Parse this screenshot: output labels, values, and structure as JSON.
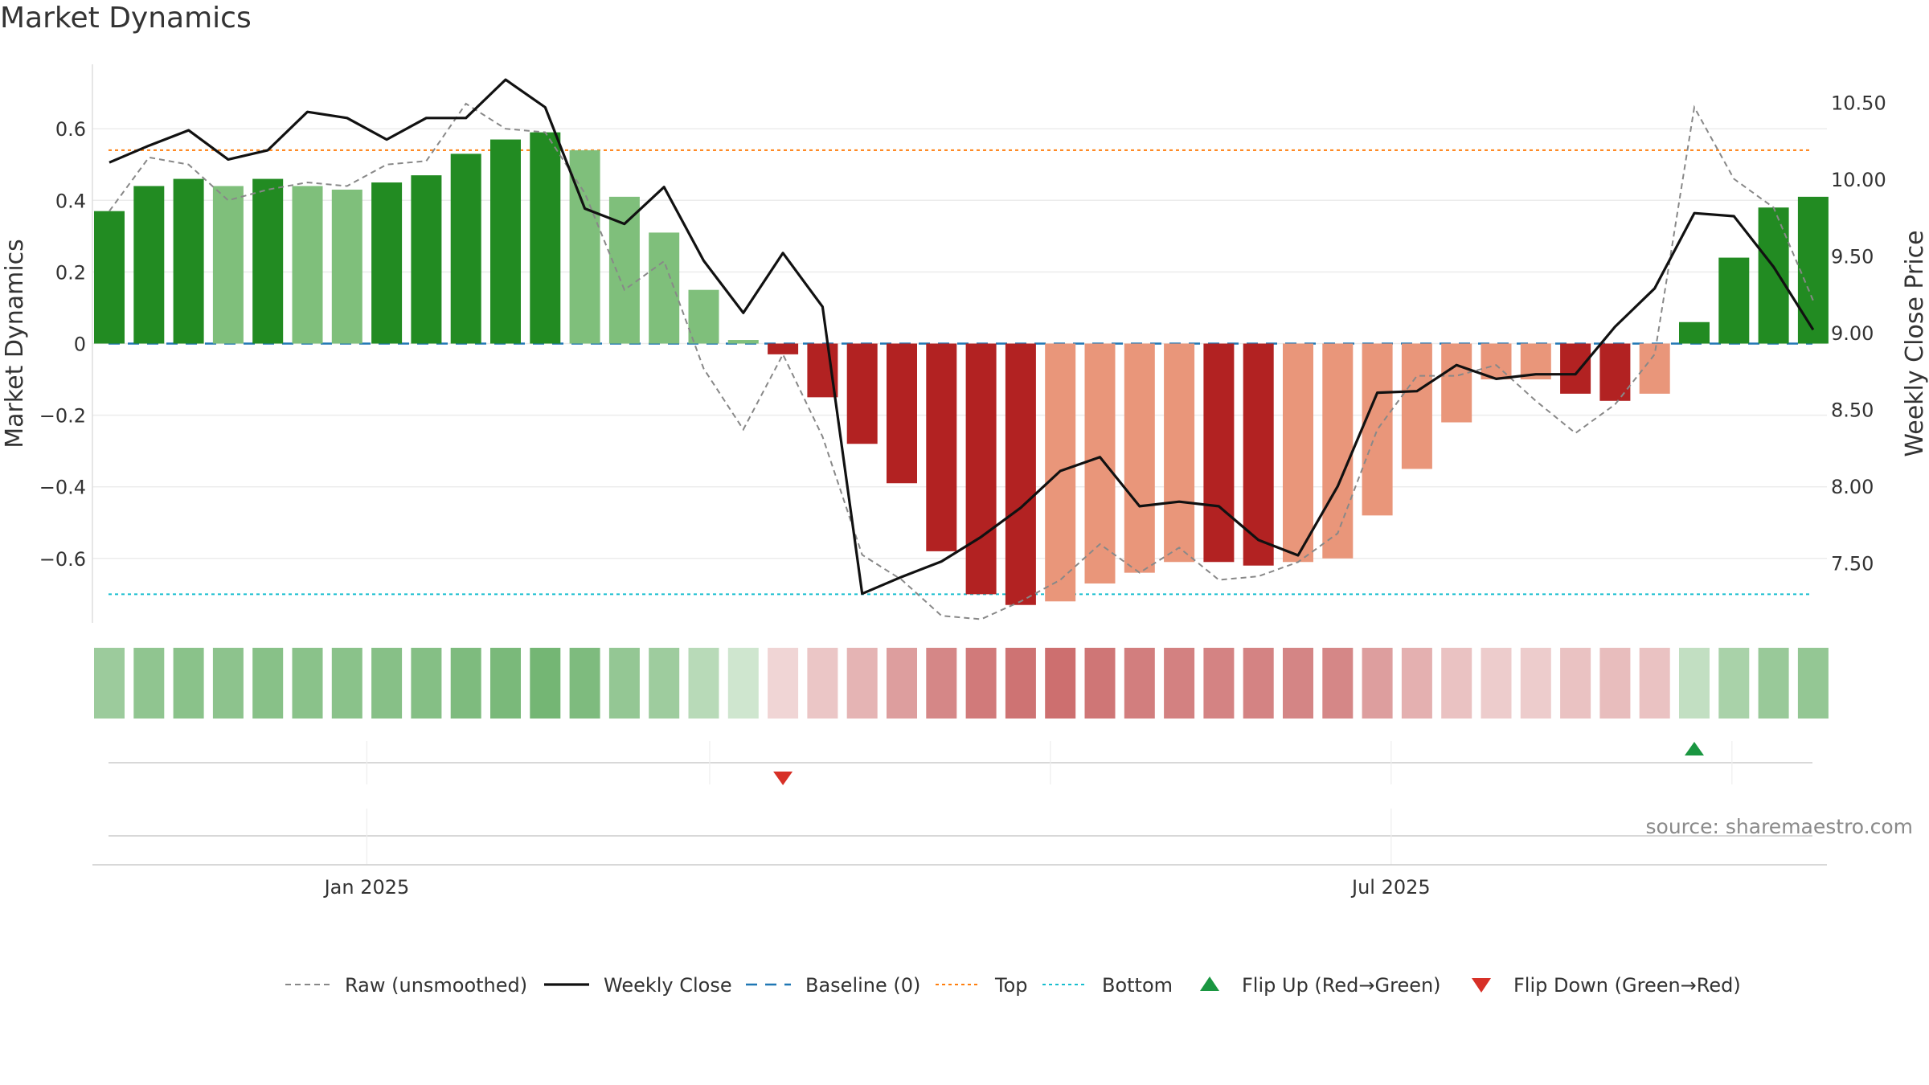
{
  "chart_data": {
    "type": "bar",
    "title": "Market Dynamics",
    "ylabel": "Market Dynamics",
    "y2label": "Weekly Close Price",
    "ylim": [
      -0.78,
      0.78
    ],
    "y2lim": [
      7.11,
      10.75
    ],
    "yticks": [
      {
        "value": 0.6,
        "label": "0.6"
      },
      {
        "value": 0.4,
        "label": "0.4"
      },
      {
        "value": 0.2,
        "label": "0.2"
      },
      {
        "value": 0,
        "label": "0"
      },
      {
        "value": -0.2,
        "label": "−0.2"
      },
      {
        "value": -0.4,
        "label": "−0.4"
      },
      {
        "value": -0.6,
        "label": "−0.6"
      }
    ],
    "y2ticks": [
      {
        "value": 10.5,
        "label": "10.50"
      },
      {
        "value": 10.0,
        "label": "10.00"
      },
      {
        "value": 9.5,
        "label": "9.50"
      },
      {
        "value": 9.0,
        "label": "9.00"
      },
      {
        "value": 8.5,
        "label": "8.50"
      },
      {
        "value": 8.0,
        "label": "8.00"
      },
      {
        "value": 7.5,
        "label": "7.50"
      }
    ],
    "xticks": [
      {
        "label": "Jan 2025",
        "position": 6.5
      },
      {
        "label": "Jul 2025",
        "position": 32.35
      }
    ],
    "weeks": 44,
    "momentum": [
      0.37,
      0.44,
      0.46,
      0.44,
      0.46,
      0.44,
      0.43,
      0.45,
      0.47,
      0.53,
      0.57,
      0.59,
      0.54,
      0.41,
      0.31,
      0.15,
      0.01,
      -0.03,
      -0.15,
      -0.28,
      -0.39,
      -0.58,
      -0.7,
      -0.73,
      -0.72,
      -0.67,
      -0.64,
      -0.61,
      -0.61,
      -0.62,
      -0.61,
      -0.6,
      -0.48,
      -0.35,
      -0.22,
      -0.1,
      -0.1,
      -0.14,
      -0.16,
      -0.14,
      0.06,
      0.24,
      0.38,
      0.41
    ],
    "bar_shade": [
      "dark",
      "dark",
      "dark",
      "light",
      "dark",
      "light",
      "light",
      "dark",
      "dark",
      "dark",
      "dark",
      "dark",
      "light",
      "light",
      "light",
      "light",
      "light",
      "dark",
      "dark",
      "dark",
      "dark",
      "dark",
      "dark",
      "dark",
      "light",
      "light",
      "light",
      "light",
      "dark",
      "dark",
      "light",
      "light",
      "light",
      "light",
      "light",
      "light",
      "light",
      "dark",
      "dark",
      "light",
      "dark",
      "dark",
      "dark",
      "dark"
    ],
    "raw_unsmoothed": [
      0.37,
      0.52,
      0.5,
      0.4,
      0.43,
      0.45,
      0.44,
      0.5,
      0.51,
      0.67,
      0.6,
      0.59,
      0.42,
      0.15,
      0.23,
      -0.07,
      -0.24,
      -0.03,
      -0.26,
      -0.59,
      -0.66,
      -0.76,
      -0.77,
      -0.72,
      -0.66,
      -0.56,
      -0.64,
      -0.57,
      -0.66,
      -0.65,
      -0.61,
      -0.53,
      -0.24,
      -0.09,
      -0.09,
      -0.06,
      -0.16,
      -0.25,
      -0.17,
      -0.03,
      0.66,
      0.46,
      0.38,
      0.12
    ],
    "weekly_close": [
      10.11,
      10.22,
      10.32,
      10.13,
      10.19,
      10.44,
      10.4,
      10.26,
      10.4,
      10.4,
      10.65,
      10.47,
      9.81,
      9.71,
      9.95,
      9.47,
      9.13,
      9.52,
      9.17,
      7.3,
      7.41,
      7.51,
      7.67,
      7.86,
      8.1,
      8.19,
      7.87,
      7.9,
      7.87,
      7.65,
      7.55,
      8.0,
      8.61,
      8.62,
      8.79,
      8.7,
      8.73,
      8.73,
      9.04,
      9.29,
      9.78,
      9.76,
      9.43,
      9.02
    ],
    "top_level": 0.54,
    "bottom_level": -0.7,
    "baseline": 0,
    "strength_strip": [
      0.43,
      0.5,
      0.53,
      0.52,
      0.54,
      0.53,
      0.53,
      0.55,
      0.56,
      0.6,
      0.62,
      0.65,
      0.6,
      0.48,
      0.42,
      0.28,
      0.15,
      -0.12,
      -0.2,
      -0.3,
      -0.42,
      -0.55,
      -0.62,
      -0.66,
      -0.68,
      -0.64,
      -0.6,
      -0.58,
      -0.57,
      -0.57,
      -0.56,
      -0.55,
      -0.42,
      -0.32,
      -0.22,
      -0.17,
      -0.17,
      -0.22,
      -0.25,
      -0.22,
      0.22,
      0.36,
      0.45,
      0.48
    ],
    "flip_up_weeks": [
      40
    ],
    "flip_down_weeks": [
      17
    ],
    "legend": [
      {
        "label": "Raw (unsmoothed)",
        "kind": "dash-gray"
      },
      {
        "label": "Weekly Close",
        "kind": "solid-black"
      },
      {
        "label": "Baseline (0)",
        "kind": "dash-blue"
      },
      {
        "label": "Top",
        "kind": "dot-orange"
      },
      {
        "label": "Bottom",
        "kind": "dot-cyan"
      },
      {
        "label": "Flip Up (Red→Green)",
        "kind": "tri-up"
      },
      {
        "label": "Flip Down (Green→Red)",
        "kind": "tri-down"
      }
    ],
    "legend_placement": "bottom-center",
    "grid": true
  },
  "source": "source: sharemaestro.com",
  "colors": {
    "green_dark": "#228b22",
    "green_light": "#7fbf7b",
    "red_dark": "#b22222",
    "red_light": "#e9967a",
    "raw_line": "#888888",
    "close_line": "#111111",
    "baseline": "#1f77b4",
    "top": "#ff7f0e",
    "bottom": "#17becf",
    "flip_up": "#1a9641",
    "flip_down": "#d73027"
  }
}
